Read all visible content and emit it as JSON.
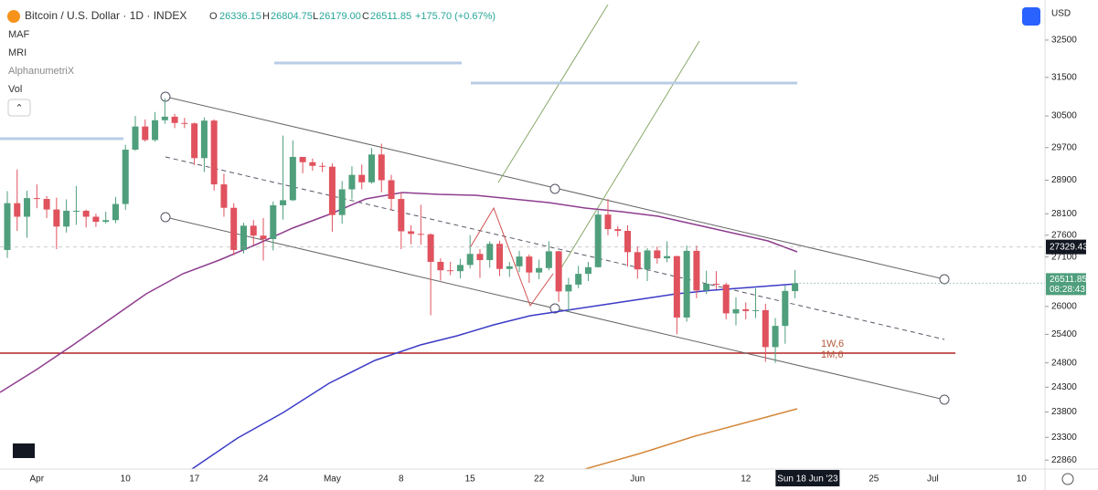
{
  "chart_data": {
    "type": "candlestick",
    "title": "Bitcoin / U.S. Dollar · 1D · INDEX",
    "header": {
      "o_label": "O",
      "open": "26336.15",
      "h_label": "H",
      "high": "26804.75",
      "l_label": "L",
      "low": "26179.00",
      "c_label": "C",
      "close": "26511.85",
      "change": "+175.70 (+0.67%)"
    },
    "indicators": [
      "MAF",
      "MRI",
      "AlphanumetriX",
      "Vol"
    ],
    "currency": "USD",
    "annotations": [
      "1W,6",
      "1M,6"
    ],
    "crosshair_date": "Sun 18 Jun '23",
    "crosshair_price": 27329.43,
    "countdown": "08:28:43",
    "up_color": "#4f9f7c",
    "down_color": "#e0525e",
    "log_scale": true,
    "ylim": [
      22690,
      33610
    ],
    "yticks": [
      32500,
      31500,
      30500,
      29700,
      28900,
      28100,
      27600,
      27100,
      26000,
      25400,
      24800,
      24300,
      23800,
      23300,
      22860
    ],
    "categories": [
      null,
      null,
      null,
      "Apr",
      null,
      null,
      null,
      null,
      null,
      null,
      null,
      null,
      "10",
      null,
      null,
      null,
      null,
      null,
      null,
      "17",
      null,
      null,
      null,
      null,
      null,
      null,
      "24",
      null,
      null,
      null,
      null,
      null,
      null,
      "May",
      null,
      null,
      null,
      null,
      null,
      null,
      "8",
      null,
      null,
      null,
      null,
      null,
      null,
      "15",
      null,
      null,
      null,
      null,
      null,
      null,
      "22",
      null,
      null,
      null,
      null,
      null,
      null,
      null,
      null,
      null,
      "Jun",
      null,
      null,
      null,
      null,
      null,
      null,
      null,
      null,
      null,
      null,
      "12",
      null,
      null,
      null,
      null,
      null,
      null,
      null,
      null,
      null,
      null,
      null,
      null,
      "25",
      null,
      null,
      null,
      null,
      null,
      "Jul",
      null,
      null,
      null,
      null,
      null,
      null,
      null,
      null,
      "10",
      null,
      null
    ],
    "open": [
      27260,
      28350,
      28030,
      28470,
      28450,
      28200,
      27800,
      28170,
      28170,
      28030,
      27910,
      27950,
      28330,
      29650,
      30230,
      29890,
      30390,
      30480,
      30320,
      30310,
      29440,
      30380,
      28800,
      28240,
      27260,
      27820,
      27590,
      27510,
      28300,
      28420,
      29470,
      29340,
      29250,
      29230,
      28070,
      28680,
      29030,
      28850,
      29530,
      28900,
      28450,
      27690,
      27630,
      27620,
      26990,
      26800,
      26780,
      26920,
      27170,
      27030,
      27400,
      26830,
      26890,
      27110,
      26750,
      26850,
      27230,
      26330,
      26480,
      26720,
      26870,
      28080,
      27740,
      27700,
      27210,
      26820,
      27250,
      27070,
      27120,
      25760,
      27240,
      26350,
      26500,
      26480,
      25850,
      25940,
      25900,
      25920,
      25130,
      25580,
      26336.15,
      null,
      null,
      null,
      null,
      null,
      null,
      null,
      null,
      null,
      null,
      null,
      null,
      null,
      null,
      null,
      null,
      null,
      null,
      null,
      null,
      null,
      null,
      null,
      null,
      null
    ],
    "high": [
      28640,
      29160,
      28650,
      28800,
      28520,
      28480,
      28440,
      28760,
      28200,
      28100,
      28150,
      28500,
      29770,
      30500,
      30410,
      30600,
      30950,
      30550,
      30450,
      30330,
      30460,
      30410,
      29060,
      28350,
      27890,
      27950,
      28000,
      28390,
      30000,
      29880,
      29450,
      29430,
      29330,
      29310,
      28880,
      29240,
      29280,
      29690,
      29800,
      29030,
      28600,
      27830,
      28310,
      27640,
      27070,
      26990,
      27060,
      27600,
      27280,
      27460,
      27470,
      26990,
      27240,
      27160,
      27040,
      27460,
      27240,
      26630,
      26900,
      26990,
      28180,
      28450,
      27810,
      27830,
      27340,
      27300,
      27340,
      27460,
      27130,
      27360,
      27360,
      26790,
      26780,
      26520,
      26200,
      26090,
      26400,
      26060,
      25750,
      26460,
      26804.75,
      null,
      null,
      null,
      null,
      null,
      null,
      null,
      null,
      null,
      null,
      null,
      null,
      null,
      null,
      null,
      null,
      null,
      null,
      null,
      null,
      null,
      null,
      null,
      null,
      null
    ],
    "low": [
      27080,
      27700,
      27540,
      28230,
      28000,
      27280,
      27660,
      27840,
      27780,
      27790,
      27870,
      27880,
      28190,
      29620,
      29850,
      29850,
      30300,
      30190,
      30190,
      29270,
      29100,
      28650,
      28030,
      27140,
      27180,
      27370,
      27020,
      27250,
      27960,
      28400,
      29070,
      29130,
      29100,
      27680,
      27870,
      28440,
      28680,
      28820,
      28610,
      28180,
      27280,
      27390,
      27380,
      25810,
      26570,
      26690,
      26620,
      26840,
      26630,
      26860,
      26670,
      26650,
      26760,
      26520,
      26600,
      26800,
      26100,
      25880,
      26400,
      26560,
      26860,
      27600,
      27570,
      26880,
      26610,
      26560,
      26950,
      26980,
      25400,
      25670,
      26180,
      26270,
      26380,
      25720,
      25590,
      25720,
      25750,
      24820,
      24800,
      25200,
      26179,
      null,
      null,
      null,
      null,
      null,
      null,
      null,
      null,
      null,
      null,
      null,
      null,
      null,
      null,
      null,
      null,
      null,
      null,
      null,
      null,
      null,
      null,
      null,
      null,
      null
    ],
    "close": [
      28350,
      28030,
      28470,
      28450,
      28200,
      27800,
      28170,
      28170,
      28030,
      27910,
      27950,
      28330,
      29650,
      30230,
      29890,
      30390,
      30480,
      30320,
      30310,
      29440,
      30380,
      28800,
      28240,
      27260,
      27820,
      27590,
      27510,
      28300,
      28420,
      29470,
      29340,
      29250,
      29230,
      28070,
      28680,
      29030,
      28850,
      29530,
      28900,
      28450,
      27690,
      27630,
      27620,
      26990,
      26800,
      26780,
      26920,
      27170,
      27030,
      27400,
      26830,
      26890,
      27110,
      26750,
      26850,
      27230,
      26330,
      26480,
      26720,
      26870,
      28080,
      27740,
      27700,
      27210,
      26820,
      27250,
      27070,
      27120,
      25760,
      27240,
      26350,
      26500,
      26480,
      25850,
      25940,
      25900,
      25920,
      25130,
      25580,
      26340,
      26511.85,
      null,
      null,
      null,
      null,
      null,
      null,
      null,
      null,
      null,
      null,
      null,
      null,
      null,
      null,
      null,
      null,
      null,
      null,
      null,
      null,
      null,
      null,
      null,
      null,
      null
    ]
  }
}
